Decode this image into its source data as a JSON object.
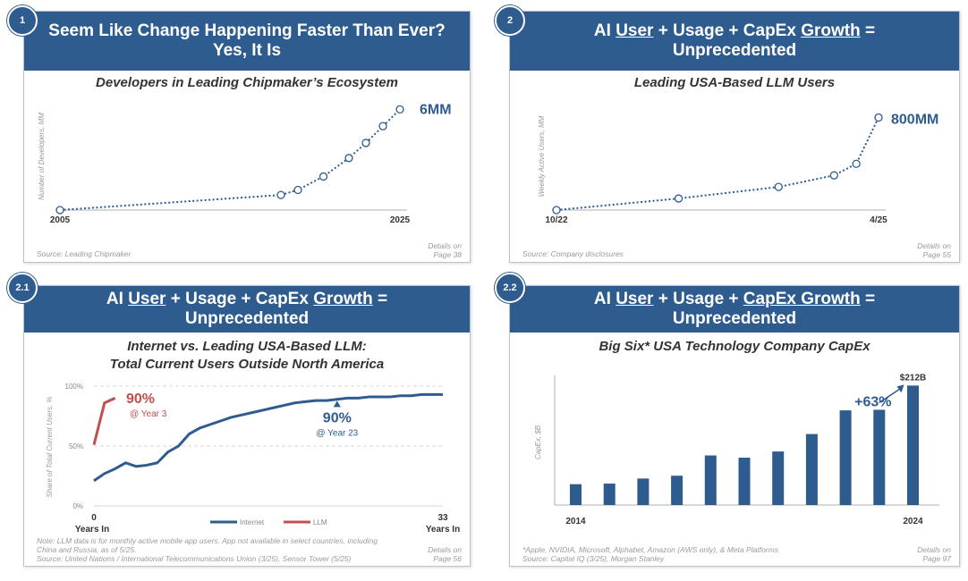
{
  "colors": {
    "navy": "#2e5c8f",
    "red": "#c0504d",
    "bar": "#2e5c8f",
    "text": "#333333"
  },
  "panels": [
    {
      "badge": "1",
      "title_line1": "Seem Like Change Happening Faster Than Ever?",
      "title_line2": "Yes, It Is",
      "subtitle": "Developers in Leading Chipmaker’s Ecosystem",
      "source": "Source: Leading Chipmaker",
      "details": "Details on",
      "page": "Page 38"
    },
    {
      "badge": "2",
      "title_l1_a": "AI ",
      "title_l1_u1": "User",
      "title_l1_b": " + Usage + CapEx ",
      "title_l1_u2": "Growth",
      "title_l1_c": " =",
      "title_line2": "Unprecedented",
      "subtitle": "Leading USA-Based LLM Users",
      "source": "Source: Company disclosures",
      "details": "Details on",
      "page": "Page 55"
    },
    {
      "badge": "2.1",
      "title_l1_a": "AI ",
      "title_l1_u1": "User",
      "title_l1_b": " + Usage + CapEx ",
      "title_l1_u2": "Growth",
      "title_l1_c": " =",
      "title_line2": "Unprecedented",
      "subtitle_line1": "Internet vs. Leading USA-Based LLM:",
      "subtitle_line2": "Total Current Users Outside North America",
      "note_line1": "Note: LLM data is for monthly active mobile app users. App not available in select countries, including",
      "note_line2": "China and Russia, as of 5/25.",
      "source": "Source: United Nations / International Telecommunications Union (3/25), Sensor Tower (5/25)",
      "details": "Details on",
      "page": "Page 56"
    },
    {
      "badge": "2.2",
      "title_l1_a": "AI ",
      "title_l1_u1": "User",
      "title_l1_b": " + Usage + ",
      "title_l1_u2": "CapEx Growth",
      "title_l1_c": " =",
      "title_line2": "Unprecedented",
      "subtitle": "Big Six* USA Technology Company CapEx",
      "note": "*Apple, NVIDIA, Microsoft, Alphabet, Amazon (AWS only), & Meta Platforms",
      "source": "Source: Capital IQ (3/25), Morgan Stanley",
      "details": "Details on",
      "page": "Page 97"
    }
  ],
  "chart_data": [
    {
      "type": "line",
      "title": "Developers in Leading Chipmaker’s Ecosystem",
      "ylabel": "Number of Developers, MM",
      "x": [
        2005,
        2018,
        2019,
        2020.5,
        2022,
        2023,
        2024,
        2025
      ],
      "y": [
        0,
        0.9,
        1.2,
        2.0,
        3.1,
        4.0,
        5.0,
        6.0
      ],
      "xlim": [
        2005,
        2025
      ],
      "ylim": [
        0,
        6.5
      ],
      "tick_labels": [
        "2005",
        "2025"
      ],
      "annotation": "6MM"
    },
    {
      "type": "line",
      "title": "Leading USA-Based LLM Users",
      "ylabel": "Weekly Active Users, MM",
      "x": [
        0,
        11,
        20,
        25,
        27,
        29
      ],
      "y": [
        0,
        100,
        200,
        300,
        400,
        800
      ],
      "xlim": [
        0,
        29
      ],
      "ylim": [
        0,
        850
      ],
      "tick_labels": [
        "10/22",
        "4/25"
      ],
      "annotation": "800MM"
    },
    {
      "type": "line",
      "title": "Internet vs. Leading USA-Based LLM: Total Current Users Outside North America",
      "ylabel": "Share of Total Current Users, %",
      "xlim": [
        0,
        33
      ],
      "ylim": [
        0,
        100
      ],
      "y_ticks": [
        "0%",
        "50%",
        "100%"
      ],
      "x_tick_labels": [
        {
          "top": "0",
          "bottom": "Years In"
        },
        {
          "top": "33",
          "bottom": "Years In"
        }
      ],
      "series": [
        {
          "name": "Internet",
          "color": "#2e5c8f",
          "x": [
            0,
            1,
            2,
            3,
            4,
            5,
            6,
            7,
            8,
            9,
            10,
            11,
            12,
            13,
            14,
            15,
            16,
            17,
            18,
            19,
            20,
            21,
            22,
            23,
            24,
            25,
            26,
            27,
            28,
            29,
            30,
            31,
            32,
            33
          ],
          "y": [
            21,
            27,
            31,
            36,
            33,
            34,
            36,
            45,
            50,
            60,
            65,
            68,
            71,
            74,
            76,
            78,
            80,
            82,
            84,
            86,
            87,
            88,
            88,
            89,
            90,
            90,
            91,
            91,
            91,
            92,
            92,
            93,
            93,
            93
          ]
        },
        {
          "name": "LLM",
          "color": "#c0504d",
          "x": [
            0,
            1,
            2
          ],
          "y": [
            51,
            86,
            90
          ]
        }
      ],
      "annotations": [
        {
          "value": "90%",
          "sub": "@ Year 3",
          "color": "#c0504d"
        },
        {
          "value": "90%",
          "sub": "@ Year 23",
          "color": "#2e5c8f"
        }
      ]
    },
    {
      "type": "bar",
      "title": "Big Six* USA Technology Company CapEx",
      "ylabel": "CapEx, $B",
      "categories": [
        "2014",
        "2015",
        "2016",
        "2017",
        "2018",
        "2019",
        "2020",
        "2021",
        "2022",
        "2023",
        "2024"
      ],
      "values": [
        37,
        38,
        47,
        52,
        88,
        84,
        95,
        126,
        168,
        169,
        212
      ],
      "ylim": [
        0,
        230
      ],
      "tick_labels": [
        "2014",
        "2024"
      ],
      "annotations": [
        {
          "label": "$212B"
        },
        {
          "label": "+63%"
        }
      ]
    }
  ]
}
